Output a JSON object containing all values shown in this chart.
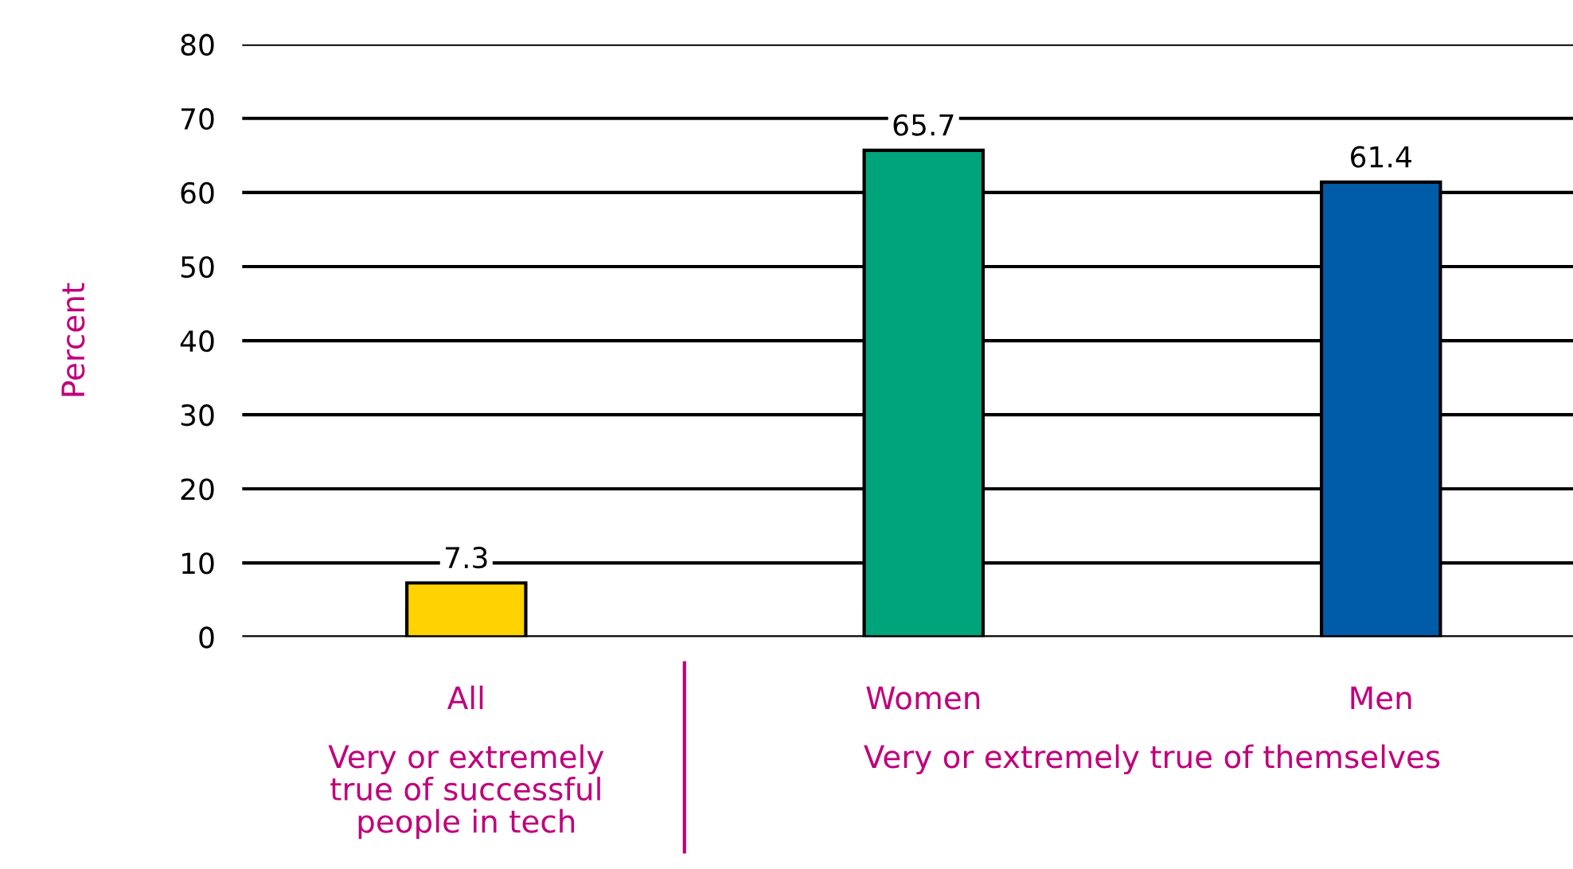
{
  "chart_data": {
    "type": "bar",
    "ylabel": "Percent",
    "categories": [
      "All",
      "Women",
      "Men"
    ],
    "values": [
      7.3,
      65.7,
      61.4
    ],
    "colors": [
      "#ffd200",
      "#00a47a",
      "#005ca8"
    ],
    "ylim": [
      0,
      80
    ],
    "yticks": [
      0,
      10,
      20,
      30,
      40,
      50,
      60,
      70,
      80
    ],
    "grid": "y",
    "data_labels": true,
    "legend": false,
    "annotations": [
      "Very or extremely\ntrue of successful\npeople in tech",
      "Very or extremely true of themselves"
    ]
  }
}
